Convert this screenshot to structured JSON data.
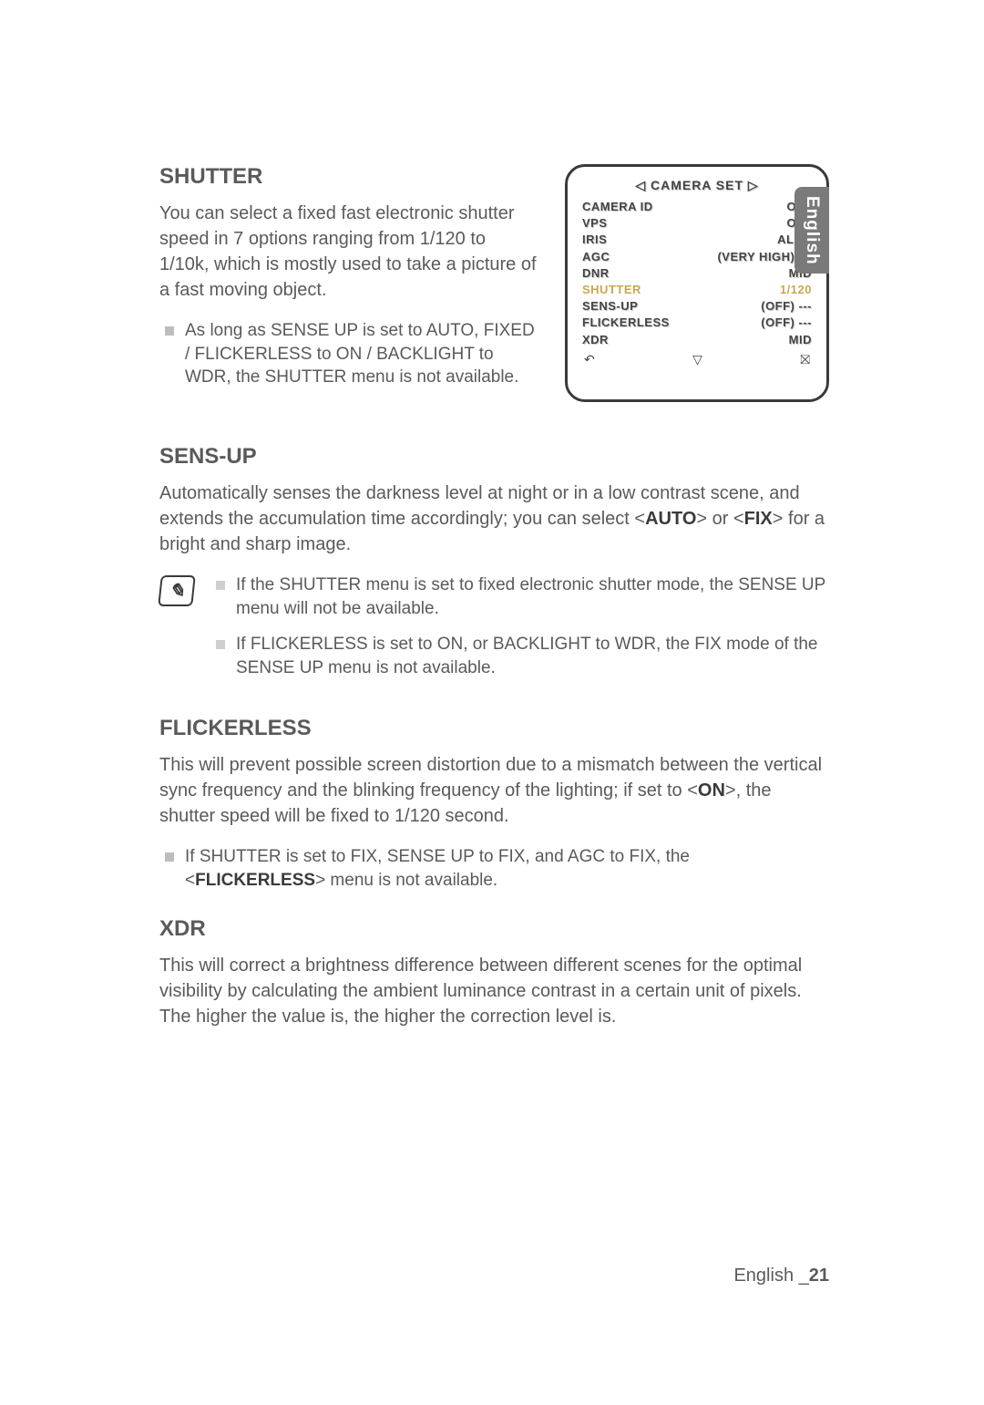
{
  "tab_label": "English",
  "shutter": {
    "title": "SHUTTER",
    "body": "You can select a fixed fast electronic shutter speed in 7 options ranging from 1/120 to 1/10k, which is mostly used to take a picture of a fast moving object.",
    "bullet": "As long as SENSE UP is set to AUTO, FIXED / FLICKERLESS to ON / BACKLIGHT to WDR, the SHUTTER menu is not available."
  },
  "osd": {
    "title": "◁ CAMERA SET ▷",
    "rows": [
      {
        "label": "CAMERA ID",
        "value": "OFF",
        "hl": false
      },
      {
        "label": "VPS",
        "value": "OFF",
        "hl": false
      },
      {
        "label": "IRIS",
        "value": "ALC┘",
        "hl": false
      },
      {
        "label": "AGC",
        "value": "(VERY HIGH) ---",
        "hl": false
      },
      {
        "label": "DNR",
        "value": "MID",
        "hl": false
      },
      {
        "label": "SHUTTER",
        "value": "1/120",
        "hl": true
      },
      {
        "label": "SENS-UP",
        "value": "(OFF) ---",
        "hl": false
      },
      {
        "label": "FLICKERLESS",
        "value": "(OFF) ---",
        "hl": false
      },
      {
        "label": "XDR",
        "value": "MID",
        "hl": false
      }
    ],
    "foot_left": "↶",
    "foot_mid": "▽",
    "foot_right": "⛝"
  },
  "sensup": {
    "title": "SENS-UP",
    "body_pre": "Automatically senses the darkness level at night or in a low contrast scene, and extends the accumulation time accordingly; you can select <",
    "body_b1": "AUTO",
    "body_mid": "> or <",
    "body_b2": "FIX",
    "body_post": "> for a bright and sharp image.",
    "notes": [
      "If the SHUTTER menu is set to fixed electronic shutter mode, the SENSE UP menu will not be available.",
      "If FLICKERLESS is set to ON, or BACKLIGHT to WDR, the FIX mode of the SENSE UP menu is not available."
    ]
  },
  "flickerless": {
    "title": "FLICKERLESS",
    "body_pre": "This will prevent possible screen distortion due to a mismatch between the vertical sync frequency and the blinking frequency of the lighting; if set to <",
    "body_b": "ON",
    "body_post": ">, the shutter speed will be fixed to 1/120 second.",
    "bullet_pre": "If SHUTTER is set to FIX, SENSE UP to FIX, and AGC to FIX, the <",
    "bullet_b": "FLICKERLESS",
    "bullet_post": "> menu is not available."
  },
  "xdr": {
    "title": "XDR",
    "body": "This will correct a brightness difference between different scenes for the optimal visibility by calculating the ambient luminance contrast in a certain unit of pixels. The higher the value is, the higher the correction level is."
  },
  "footer": {
    "lang": "English _",
    "page": "21"
  },
  "colors": {
    "text": "#5a5a5a",
    "bullet": "#bdbdbd",
    "tab_bg": "#7a7a7a",
    "osd_border": "#3a3a3a",
    "osd_hl": "#c9a94f"
  }
}
